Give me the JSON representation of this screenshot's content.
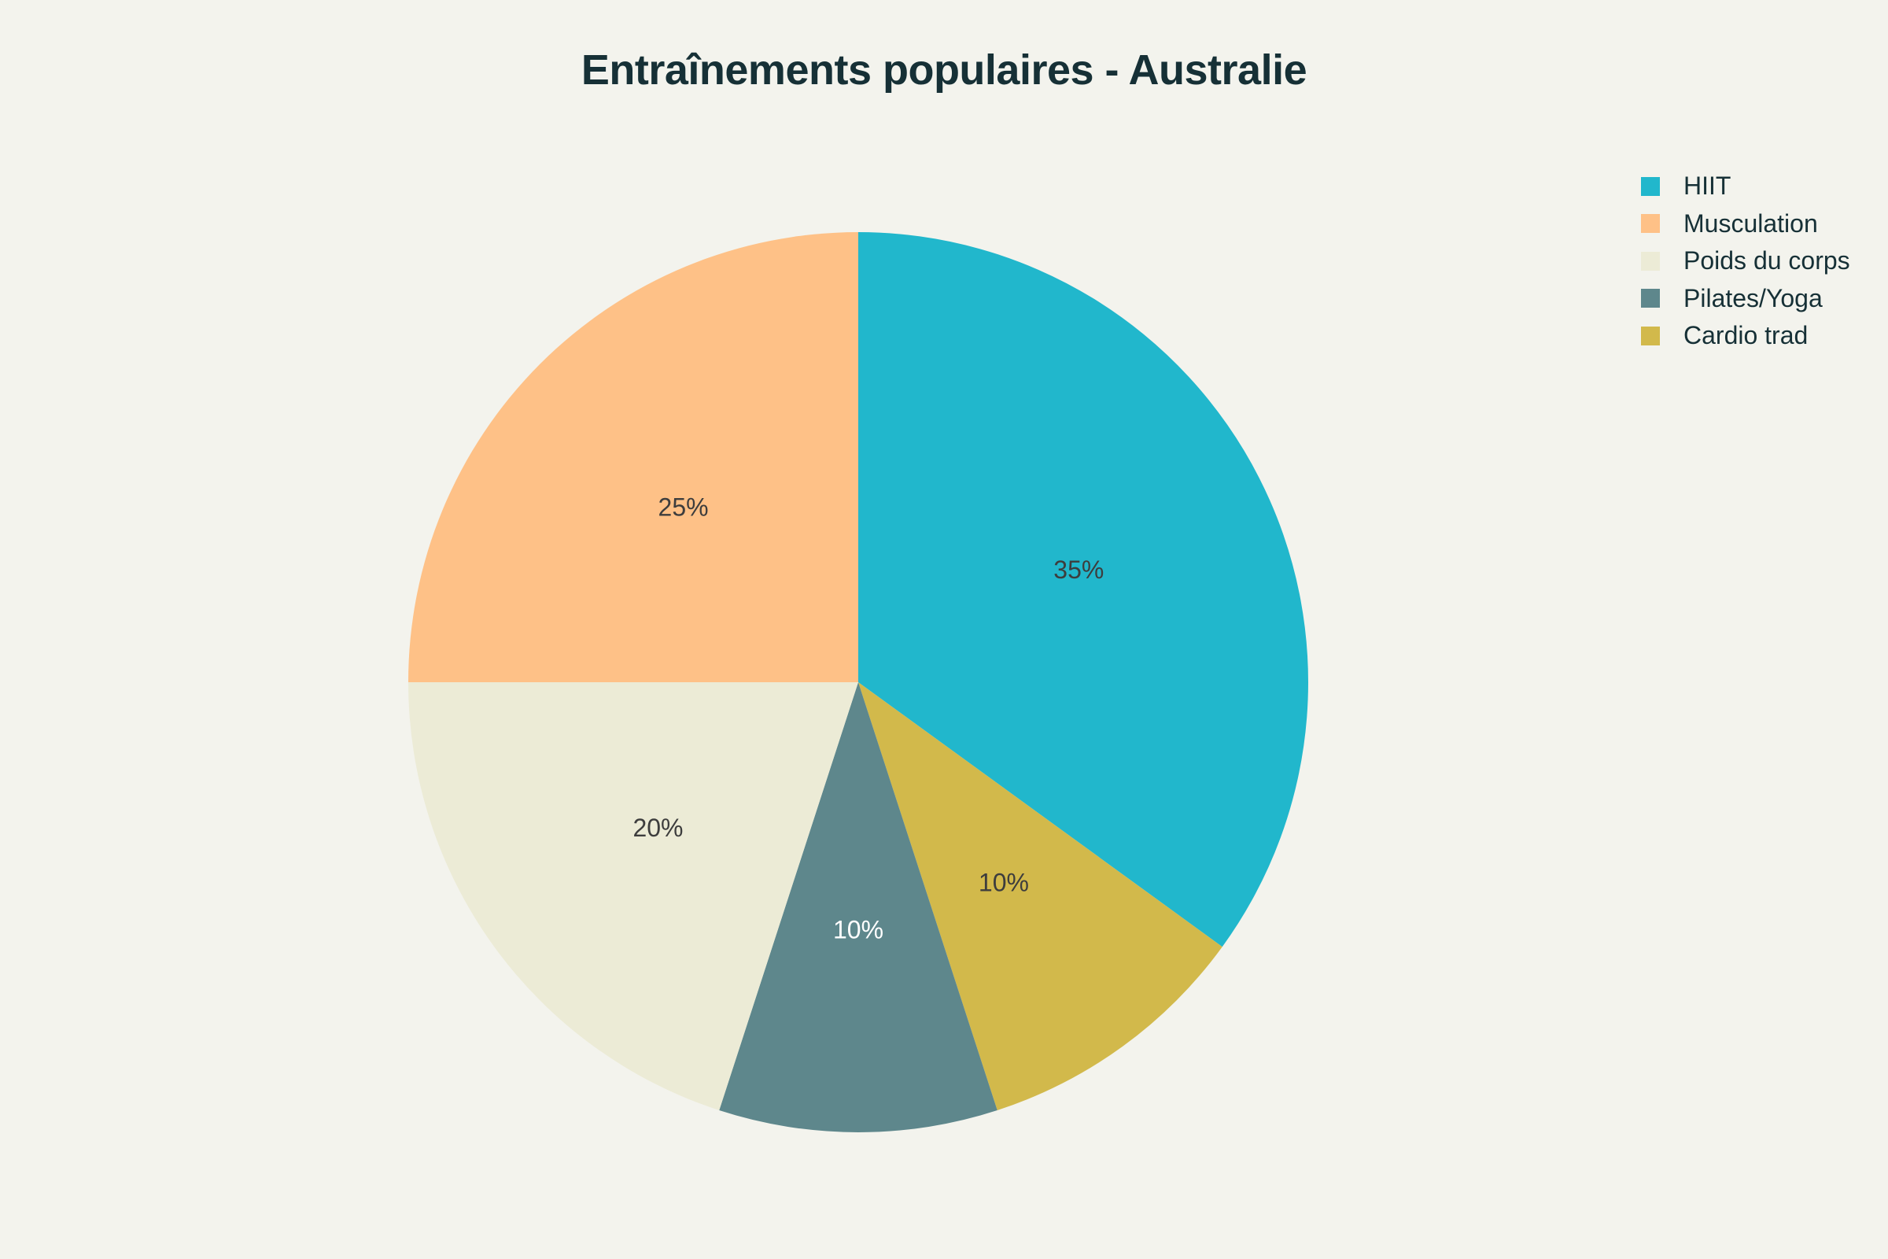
{
  "chart_data": {
    "type": "pie",
    "title": "Entraînements populaires - Australie",
    "slices": [
      {
        "label": "HIIT",
        "value": 35,
        "display": "35%",
        "color": "#21b7cc",
        "text_color": "#3d3d3d"
      },
      {
        "label": "Cardio trad",
        "value": 10,
        "display": "10%",
        "color": "#d2b94b",
        "text_color": "#3d3d3d"
      },
      {
        "label": "Pilates/Yoga",
        "value": 10,
        "display": "10%",
        "color": "#5e878c",
        "text_color": "#ffffff"
      },
      {
        "label": "Poids du corps",
        "value": 20,
        "display": "20%",
        "color": "#ecebd6",
        "text_color": "#3d3d3d"
      },
      {
        "label": "Musculation",
        "value": 25,
        "display": "25%",
        "color": "#fec187",
        "text_color": "#3d3d3d"
      }
    ],
    "legend": {
      "placement": "top-right",
      "items": [
        {
          "label": "HIIT",
          "color": "#21b7cc"
        },
        {
          "label": "Musculation",
          "color": "#fec187"
        },
        {
          "label": "Poids du corps",
          "color": "#ecebd6"
        },
        {
          "label": "Pilates/Yoga",
          "color": "#5e878c"
        },
        {
          "label": "Cardio trad",
          "color": "#d2b94b"
        }
      ]
    }
  },
  "colors": {
    "background": "#f3f3ed",
    "title": "#163036"
  }
}
